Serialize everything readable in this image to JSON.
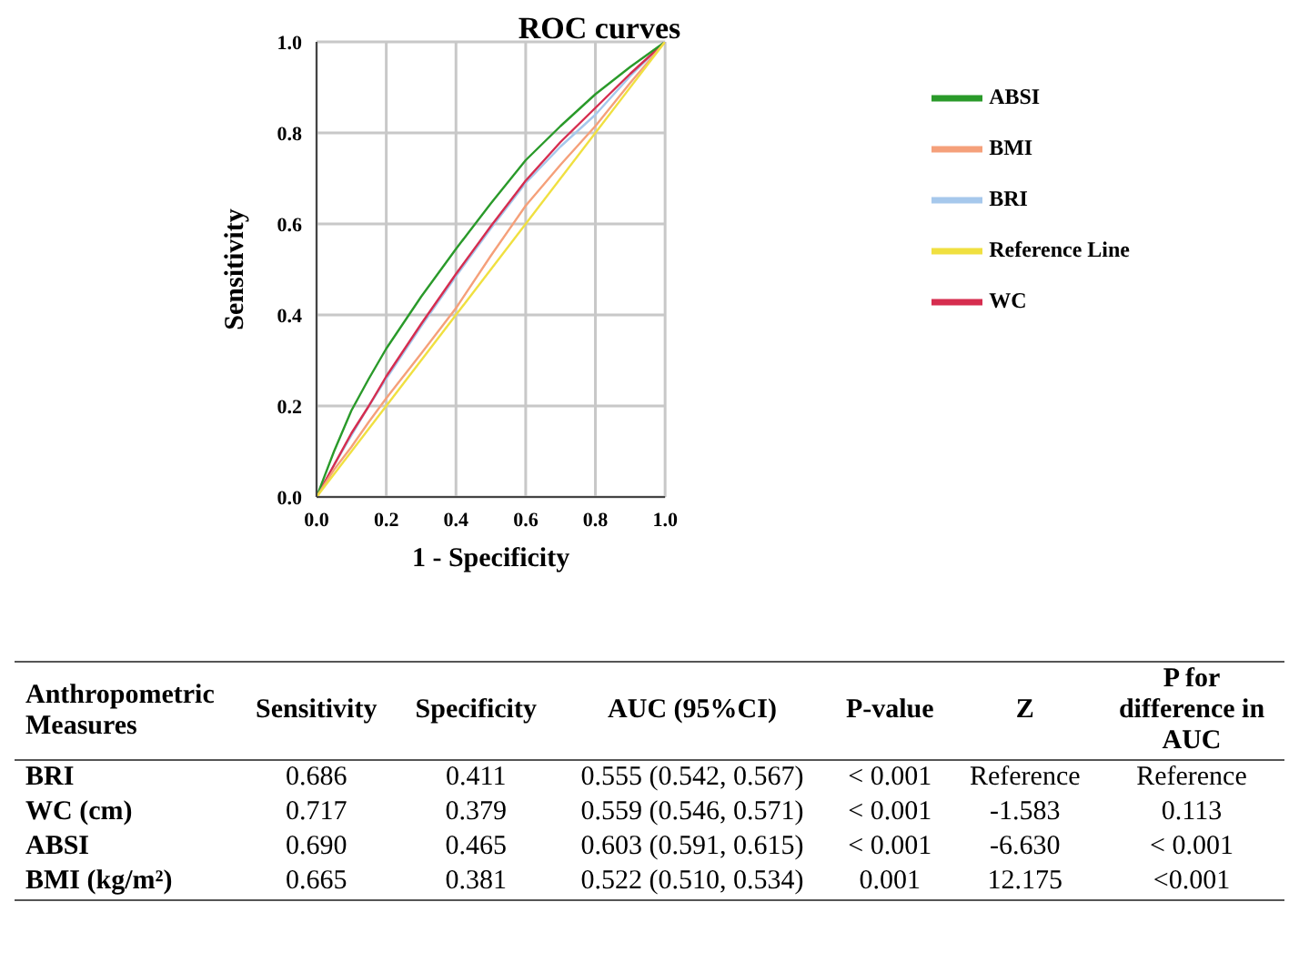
{
  "chart_data": [
    {
      "type": "line",
      "title": "ROC curves",
      "xlabel": "1 - Specificity",
      "ylabel": "Sensitivity",
      "x": [
        0,
        0.05,
        0.1,
        0.15,
        0.2,
        0.3,
        0.4,
        0.5,
        0.6,
        0.7,
        0.8,
        0.9,
        1
      ],
      "series": [
        {
          "name": "BRI",
          "color": "#a6c8ec",
          "values": [
            0,
            0.07,
            0.135,
            0.2,
            0.26,
            0.375,
            0.485,
            0.59,
            0.69,
            0.77,
            0.84,
            0.925,
            1
          ]
        },
        {
          "name": "WC",
          "color": "#d62d4f",
          "values": [
            0,
            0.07,
            0.14,
            0.2,
            0.265,
            0.38,
            0.49,
            0.595,
            0.695,
            0.78,
            0.855,
            0.93,
            1
          ]
        },
        {
          "name": "ABSI",
          "color": "#2a9a2a",
          "values": [
            0,
            0.1,
            0.19,
            0.26,
            0.326,
            0.44,
            0.545,
            0.645,
            0.74,
            0.815,
            0.885,
            0.945,
            1
          ]
        },
        {
          "name": "BMI",
          "color": "#f5a07a",
          "values": [
            0,
            0.06,
            0.11,
            0.165,
            0.217,
            0.315,
            0.415,
            0.53,
            0.64,
            0.73,
            0.815,
            0.91,
            1
          ]
        },
        {
          "name": "Reference Line",
          "color": "#f0e040",
          "x": [
            0,
            1
          ],
          "values": [
            0,
            1
          ]
        }
      ],
      "xlim": [
        0,
        1
      ],
      "ylim": [
        0,
        1
      ],
      "xticks": [
        {
          "value": 0,
          "label": "0.0"
        },
        {
          "value": 0.2,
          "label": "0.2"
        },
        {
          "value": 0.4,
          "label": "0.4"
        },
        {
          "value": 0.6,
          "label": "0.6"
        },
        {
          "value": 0.8,
          "label": "0.8"
        },
        {
          "value": 1,
          "label": "1.0"
        }
      ],
      "yticks": [
        {
          "value": 0,
          "label": "0.0"
        },
        {
          "value": 0.2,
          "label": "0.2"
        },
        {
          "value": 0.4,
          "label": "0.4"
        },
        {
          "value": 0.6,
          "label": "0.6"
        },
        {
          "value": 0.8,
          "label": "0.8"
        },
        {
          "value": 1,
          "label": "1.0"
        }
      ],
      "grid": true,
      "legend": "right",
      "marker": "none",
      "line_style": "solid"
    },
    {
      "type": "other",
      "categories": [
        "Anthropometric Measures",
        "Sensitivity",
        "Specificity",
        "AUC (95%CI)",
        "P-value",
        "Z",
        "P for difference in AUC"
      ],
      "cell_labels": [
        [
          "BRI",
          "0.686",
          "0.411",
          "0.555 (0.542, 0.567)",
          "< 0.001",
          "Reference",
          "Reference"
        ],
        [
          "WC (cm)",
          "0.717",
          "0.379",
          "0.559 (0.546, 0.571)",
          "< 0.001",
          "-1.583",
          "0.113"
        ],
        [
          "ABSI",
          "0.690",
          "0.465",
          "0.603 (0.591, 0.615)",
          "< 0.001",
          "-6.630",
          "< 0.001"
        ],
        [
          "BMI (kg/m²)",
          "0.665",
          "0.381",
          "0.522 (0.510, 0.534)",
          "0.001",
          "12.175",
          "<0.001"
        ]
      ]
    }
  ]
}
